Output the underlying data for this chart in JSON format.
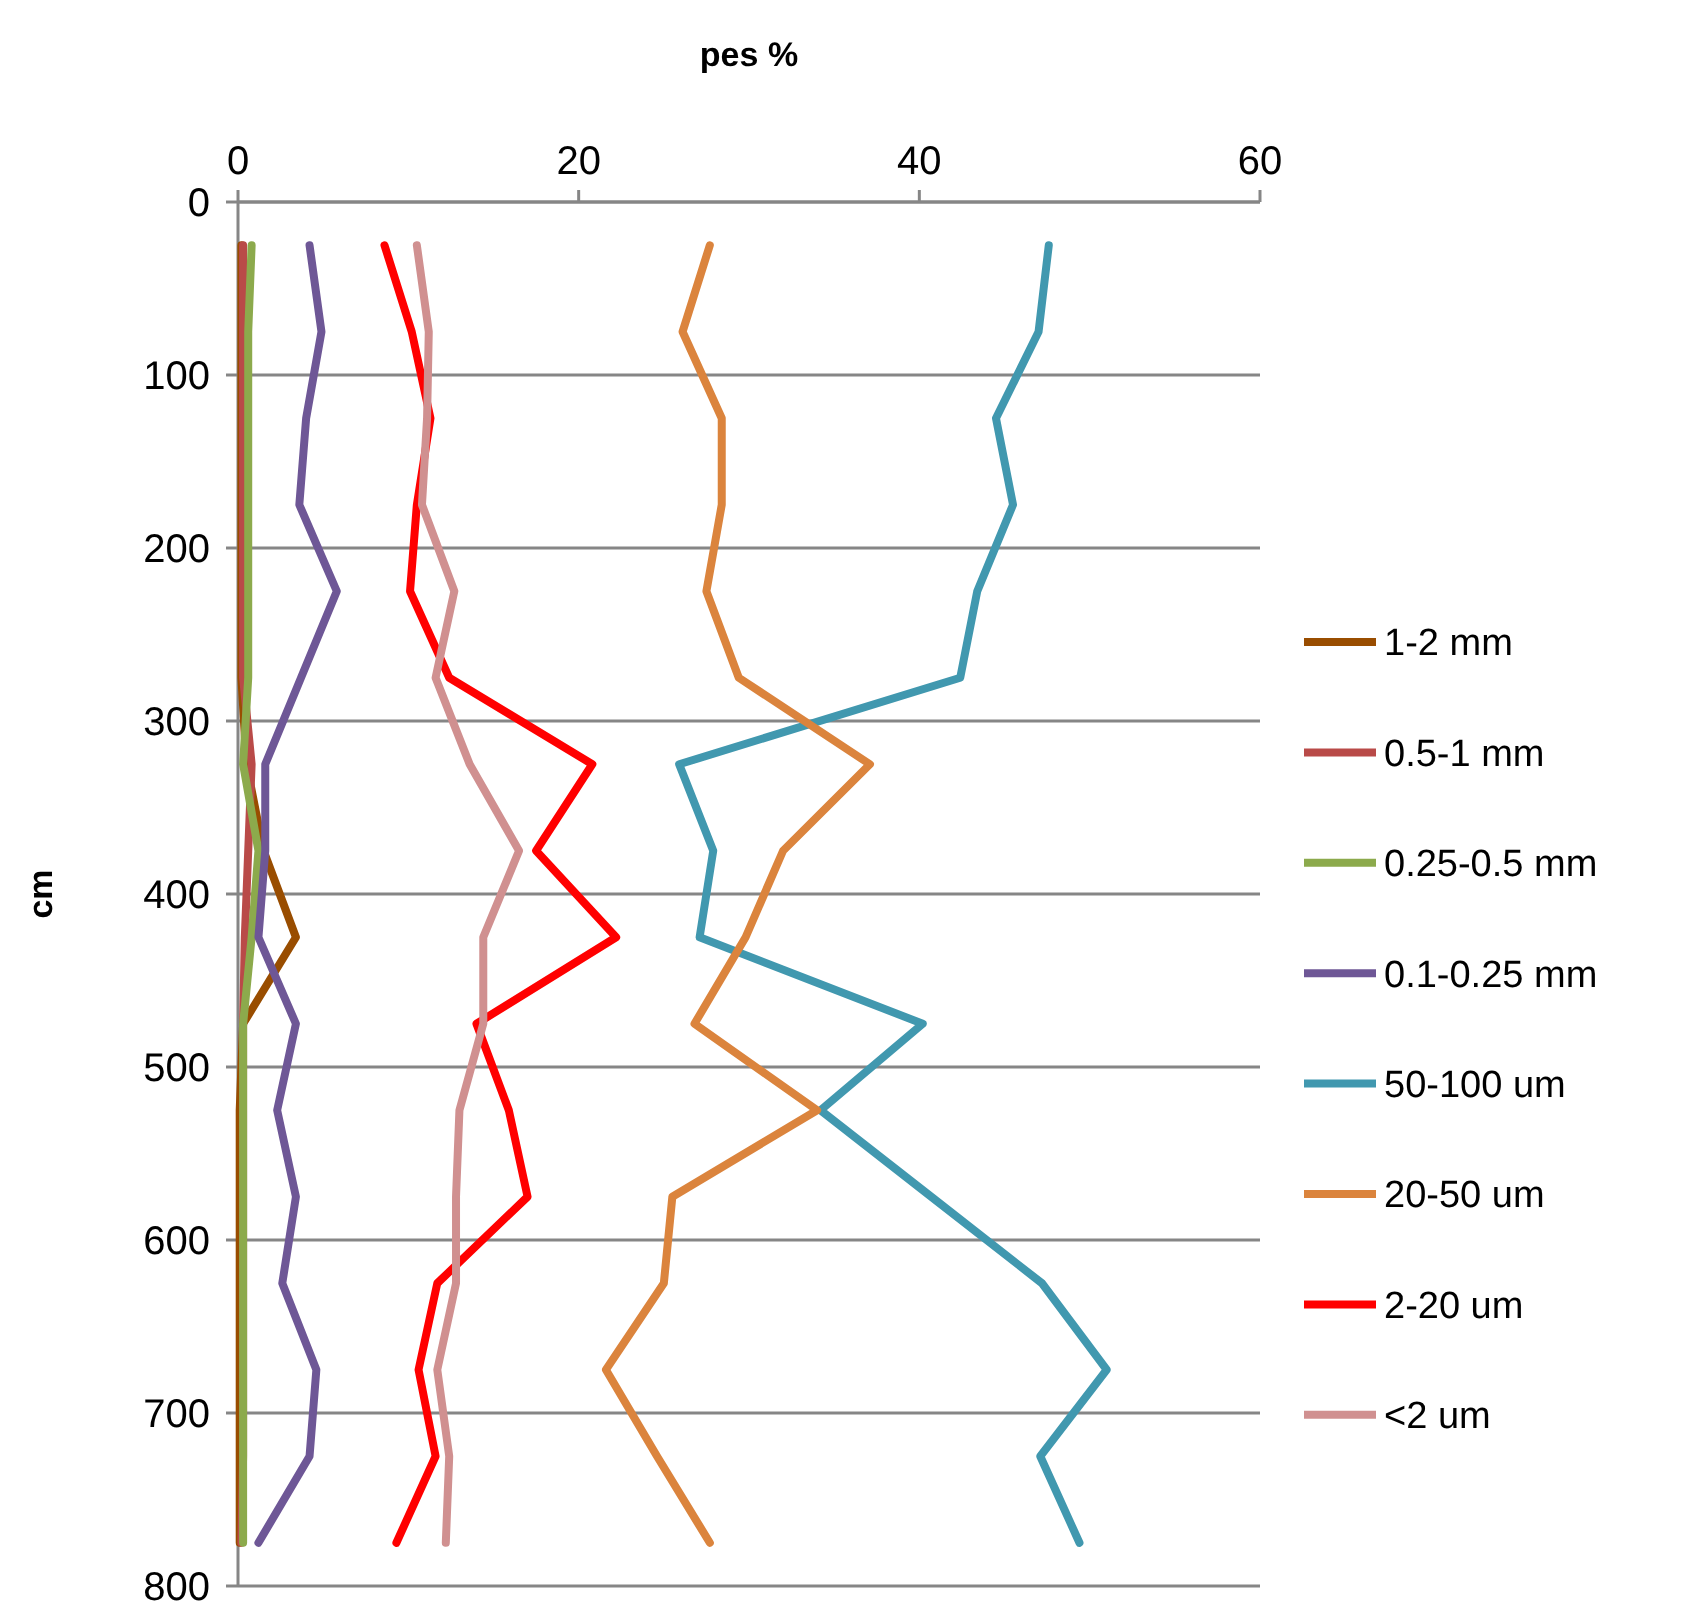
{
  "chart_data": {
    "type": "line",
    "xlabel": "pes %",
    "ylabel": "cm",
    "xlim": [
      0,
      60
    ],
    "xticks": [
      0,
      20,
      40,
      60
    ],
    "ylim": [
      800,
      0
    ],
    "yticks": [
      0,
      100,
      200,
      300,
      400,
      500,
      600,
      700,
      800
    ],
    "grid": "y",
    "legend": "right",
    "marker": "none",
    "line_style": "solid",
    "series": [
      {
        "name": "1-2 mm",
        "color": "#994d00",
        "x": [
          0.2,
          0.2,
          0.2,
          0.2,
          0.2,
          0.2,
          0.5,
          1.5,
          3.4,
          0.3,
          0.1,
          0.1,
          0.1,
          0.1,
          0.1,
          0.1
        ],
        "values": [
          25,
          75,
          125,
          175,
          225,
          275,
          325,
          375,
          425,
          475,
          525,
          575,
          625,
          675,
          725,
          775
        ]
      },
      {
        "name": "0.5-1 mm",
        "color": "#b94a48",
        "x": [
          0.3,
          0.3,
          0.3,
          0.3,
          0.3,
          0.3,
          0.8,
          0.6,
          0.4,
          0.3,
          0.3,
          0.3,
          0.3,
          0.3,
          0.3,
          0.2
        ],
        "values": [
          25,
          75,
          125,
          175,
          225,
          275,
          325,
          375,
          425,
          475,
          525,
          575,
          625,
          675,
          725,
          775
        ]
      },
      {
        "name": "0.25-0.5 mm",
        "color": "#8caa4c",
        "x": [
          0.8,
          0.6,
          0.6,
          0.6,
          0.6,
          0.6,
          0.3,
          1.2,
          0.8,
          0.3,
          0.3,
          0.3,
          0.3,
          0.3,
          0.3,
          0.3
        ],
        "values": [
          25,
          75,
          125,
          175,
          225,
          275,
          325,
          375,
          425,
          475,
          525,
          575,
          625,
          675,
          725,
          775
        ]
      },
      {
        "name": "0.1-0.25 mm",
        "color": "#6e5796",
        "x": [
          4.2,
          4.9,
          4.0,
          3.6,
          5.8,
          3.7,
          1.6,
          1.6,
          1.2,
          3.4,
          2.3,
          3.4,
          2.6,
          4.6,
          4.2,
          1.2
        ],
        "values": [
          25,
          75,
          125,
          175,
          225,
          275,
          325,
          375,
          425,
          475,
          525,
          575,
          625,
          675,
          725,
          775
        ]
      },
      {
        "name": "50-100 um",
        "color": "#4198af",
        "x": [
          47.6,
          47.0,
          44.5,
          45.5,
          43.4,
          42.4,
          25.9,
          27.9,
          27.1,
          40.2,
          34.2,
          40.7,
          47.2,
          51.0,
          47.1,
          49.4
        ],
        "values": [
          25,
          75,
          125,
          175,
          225,
          275,
          325,
          375,
          425,
          475,
          525,
          575,
          625,
          675,
          725,
          775
        ]
      },
      {
        "name": "20-50 um",
        "color": "#db843d",
        "x": [
          27.7,
          26.1,
          28.4,
          28.4,
          27.5,
          29.4,
          37.1,
          32.0,
          29.8,
          26.8,
          34.0,
          25.5,
          25.0,
          21.6,
          24.6,
          27.7
        ],
        "values": [
          25,
          75,
          125,
          175,
          225,
          275,
          325,
          375,
          425,
          475,
          525,
          575,
          625,
          675,
          725,
          775
        ]
      },
      {
        "name": "2-20 um",
        "color": "#ff0000",
        "x": [
          8.6,
          10.2,
          11.3,
          10.5,
          10.1,
          12.4,
          20.8,
          17.5,
          22.2,
          14.0,
          15.9,
          17.0,
          11.7,
          10.6,
          11.6,
          9.3
        ],
        "values": [
          25,
          75,
          125,
          175,
          225,
          275,
          325,
          375,
          425,
          475,
          525,
          575,
          625,
          675,
          725,
          775
        ]
      },
      {
        "name": "<2 um",
        "color": "#d09090",
        "x": [
          10.5,
          11.2,
          11.1,
          10.8,
          12.7,
          11.6,
          13.6,
          16.5,
          14.4,
          14.4,
          13.0,
          12.8,
          12.8,
          11.7,
          12.4,
          12.2
        ],
        "values": [
          25,
          75,
          125,
          175,
          225,
          275,
          325,
          375,
          425,
          475,
          525,
          575,
          625,
          675,
          725,
          775
        ]
      }
    ]
  }
}
